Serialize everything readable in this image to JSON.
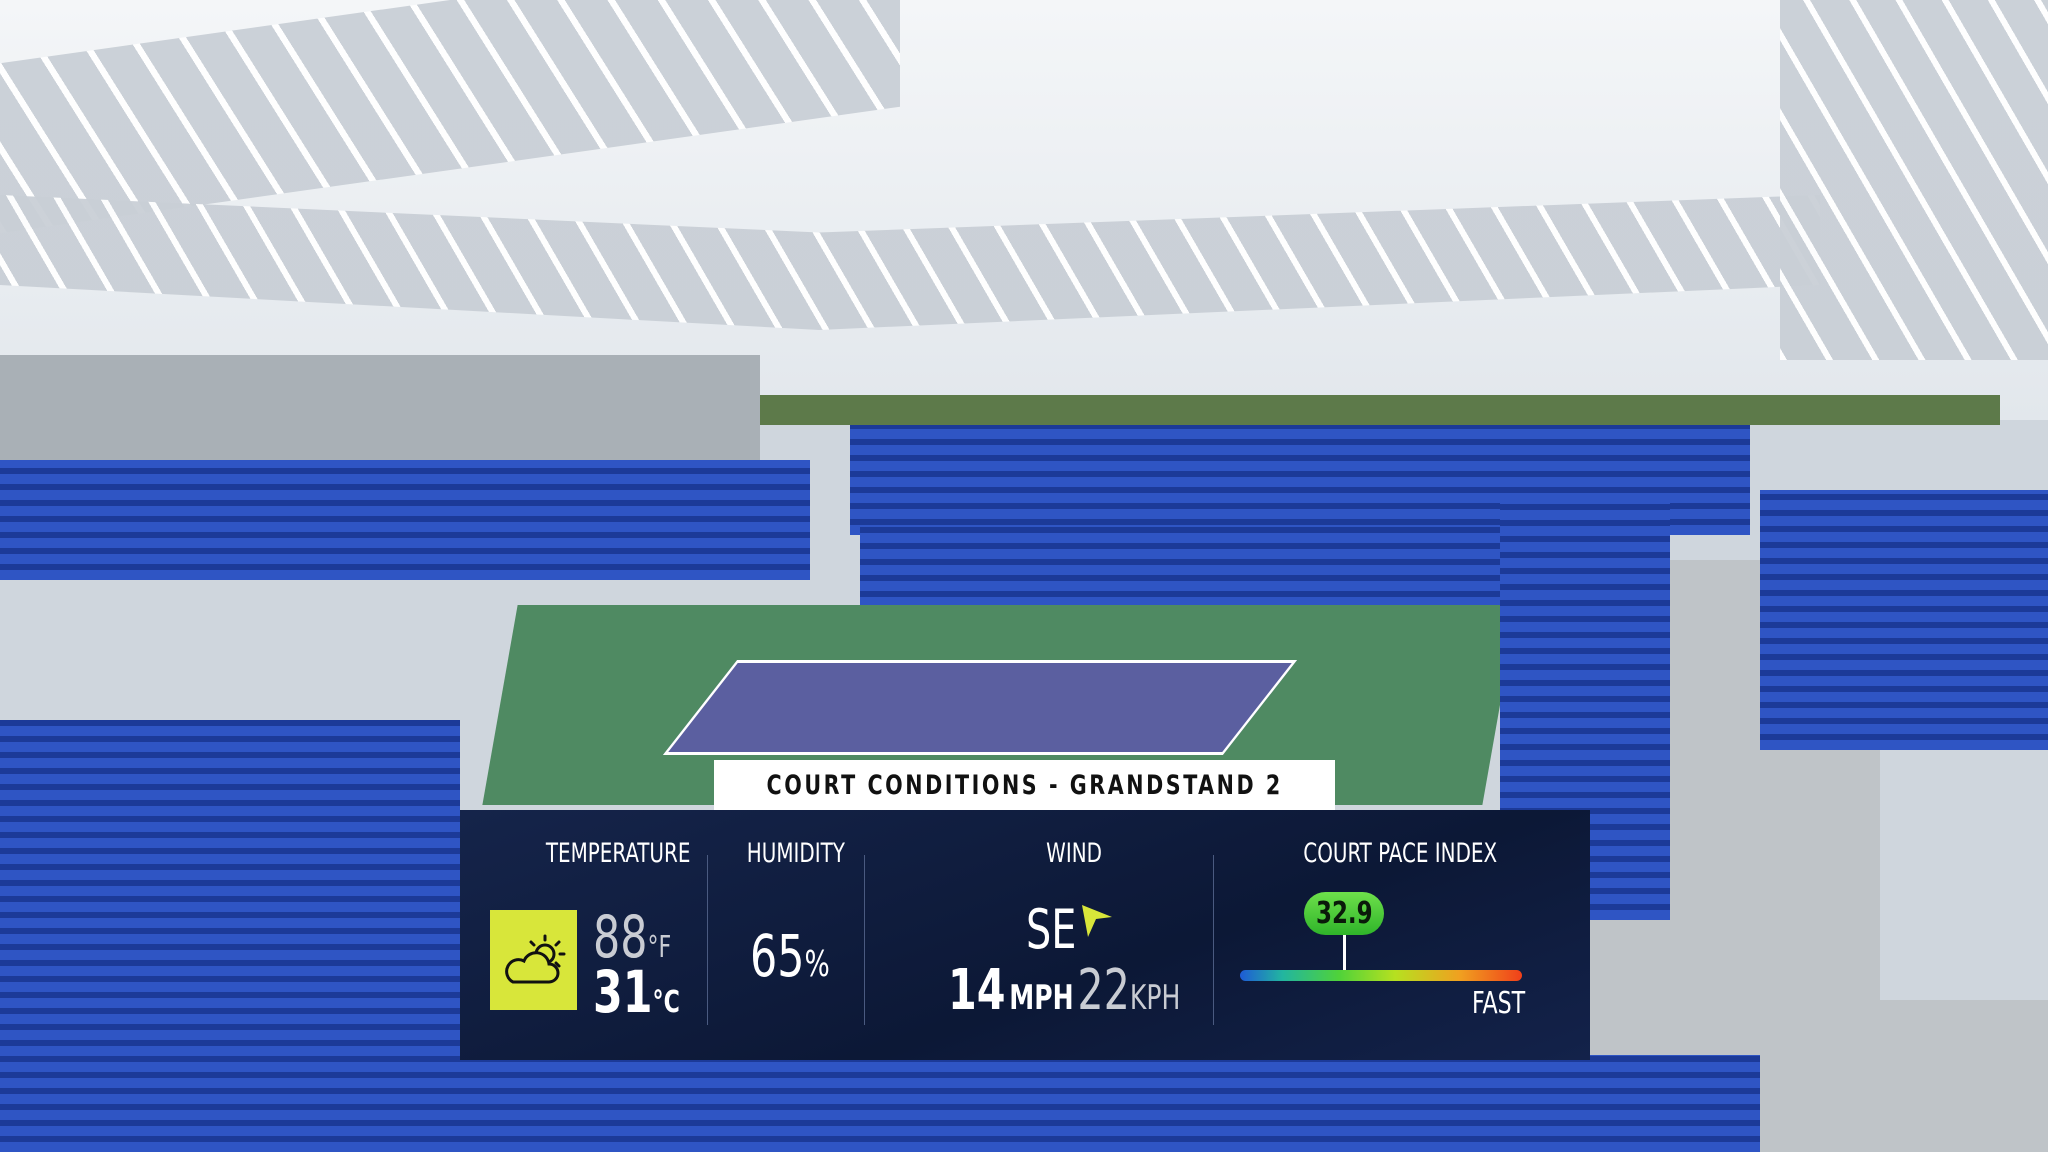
{
  "overlay": {
    "title": "COURT CONDITIONS - GRANDSTAND 2",
    "temperature": {
      "label": "TEMPERATURE",
      "icon": "partly-cloudy-icon",
      "fahrenheit": "88",
      "f_unit": "°F",
      "celsius": "31",
      "c_unit": "°C"
    },
    "humidity": {
      "label": "HUMIDITY",
      "value": "65",
      "unit": "%"
    },
    "wind": {
      "label": "WIND",
      "direction": "SE",
      "icon": "wind-direction-arrow-icon",
      "mph": "14",
      "mph_unit": "MPH",
      "kph": "22",
      "kph_unit": "KPH"
    },
    "court_pace": {
      "label": "COURT PACE INDEX",
      "value": "32.9",
      "fast_label": "FAST",
      "position_percent": 37
    }
  },
  "colors": {
    "panel": "#0c1836",
    "icon_bg": "#d8e63a",
    "pace_pill": "#3fc630",
    "accent": "#d8e63a"
  }
}
